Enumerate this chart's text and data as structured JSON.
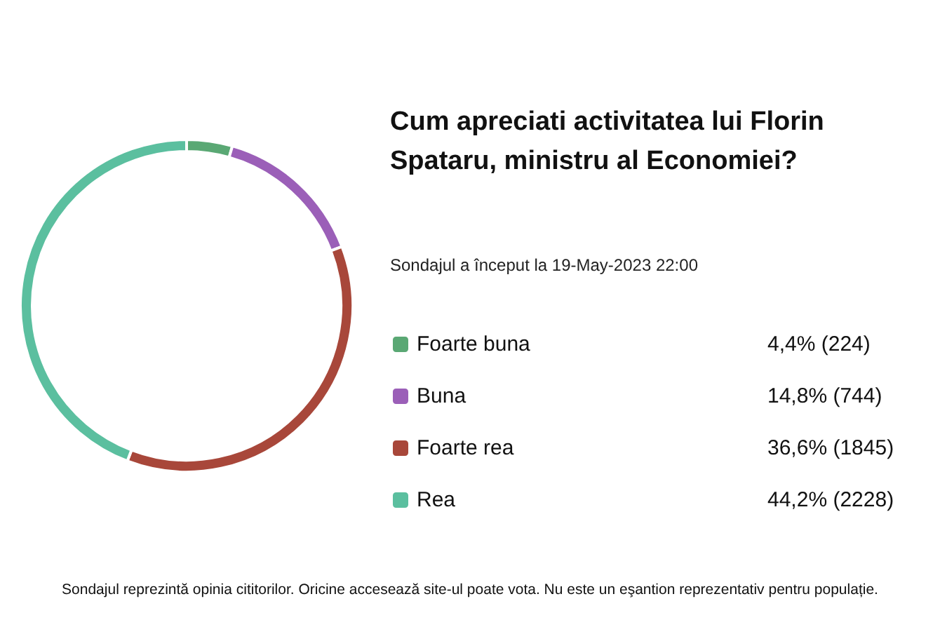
{
  "chart_data": {
    "type": "donut",
    "title": "Cum apreciati activitatea lui Florin\nSpataru, ministru al Economiei?",
    "subtitle": "Sondajul a început la 19-May-2023 22:00",
    "categories": [
      "Foarte buna",
      "Buna",
      "Foarte rea",
      "Rea"
    ],
    "values": [
      224,
      744,
      1845,
      2228
    ],
    "value_labels": [
      "4,4% (224)",
      "14,8% (744)",
      "36,6% (1845)",
      "44,2% (2228)"
    ],
    "colors": [
      "#5aa874",
      "#9b5fb8",
      "#a8473a",
      "#5bbf9f"
    ],
    "legend": "right",
    "annotations": [
      "Sondajul reprezintă opinia cititorilor. Oricine accesează site-ul poate vota. Nu este un eşantion reprezentativ pentru populație."
    ]
  }
}
